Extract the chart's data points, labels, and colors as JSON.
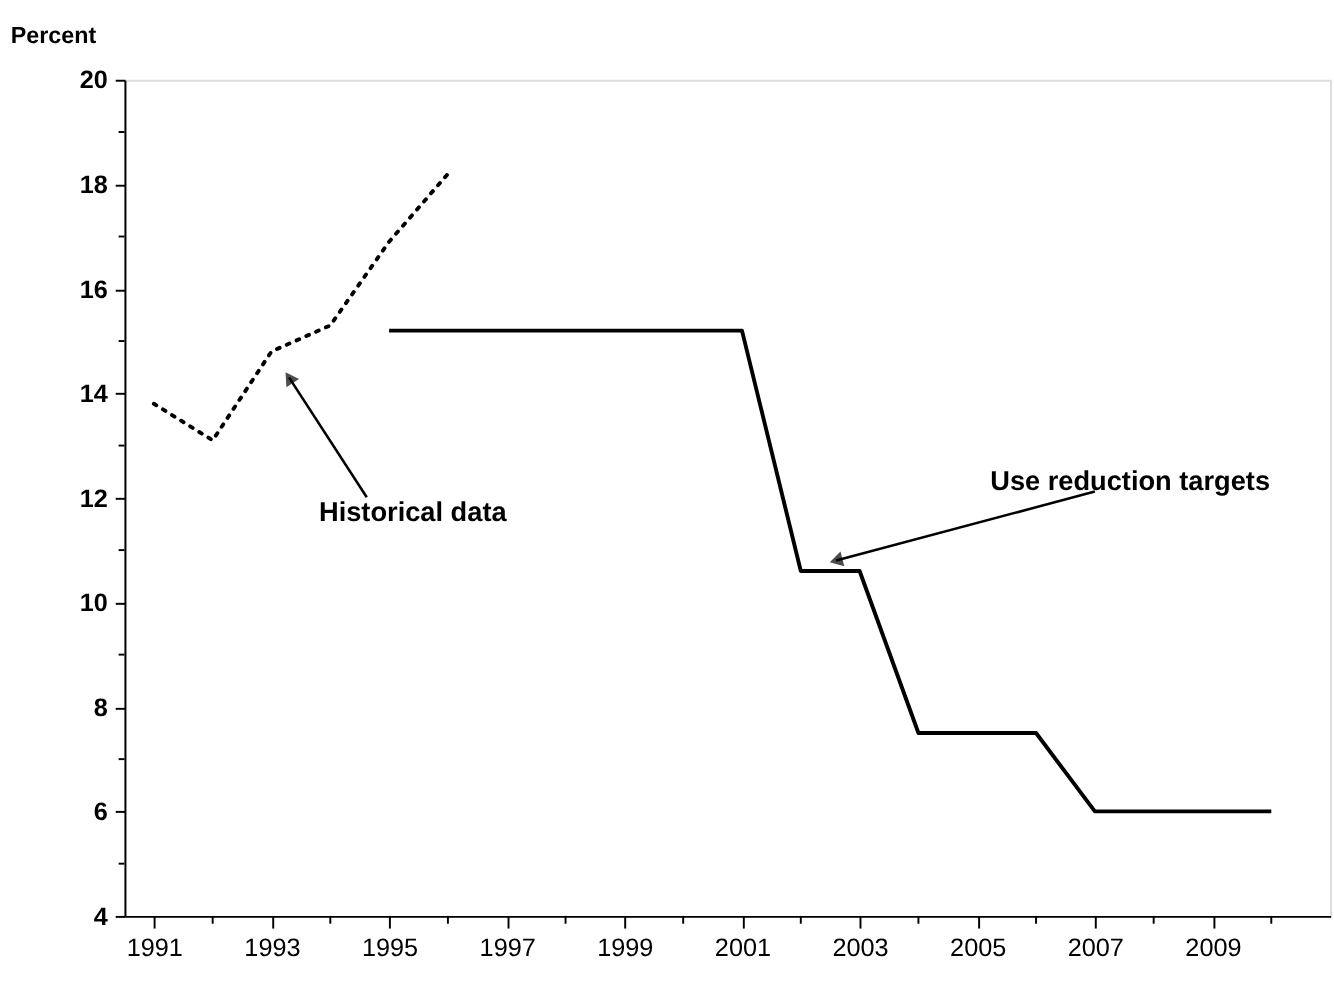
{
  "chart_data": {
    "type": "line",
    "ylabel": "Percent",
    "series": [
      {
        "x": [
          1991,
          1992,
          1993,
          1994,
          1995,
          1996
        ],
        "values": [
          13.8,
          13.1,
          14.8,
          15.3,
          16.9,
          18.2
        ],
        "color": "#000000",
        "line_style": "dotted"
      },
      {
        "x": [
          1995,
          1996,
          1997,
          1998,
          1999,
          2000,
          2001,
          2002,
          2003,
          2004,
          2005,
          2006,
          2007,
          2008,
          2009,
          2010
        ],
        "values": [
          15.2,
          15.2,
          15.2,
          15.2,
          15.2,
          15.2,
          15.2,
          10.6,
          10.6,
          7.5,
          7.5,
          7.5,
          6.0,
          6.0,
          6.0,
          6.0
        ],
        "color": "#000000",
        "line_style": "solid"
      }
    ],
    "xlim": [
      1990.5,
      2011
    ],
    "xticks": [
      1991,
      {
        "value": 1992,
        "label": null
      },
      1993,
      {
        "value": 1994,
        "label": null
      },
      1995,
      {
        "value": 1996,
        "label": null
      },
      1997,
      {
        "value": 1998,
        "label": null
      },
      1999,
      {
        "value": 2000,
        "label": null
      },
      2001,
      {
        "value": 2002,
        "label": null
      },
      2003,
      {
        "value": 2004,
        "label": null
      },
      2005,
      {
        "value": 2006,
        "label": null
      },
      2007,
      {
        "value": 2008,
        "label": null
      },
      2009,
      {
        "value": 2010,
        "label": null
      }
    ],
    "ylim": [
      4,
      20
    ],
    "yticks": [
      4,
      {
        "value": 5,
        "label": null
      },
      6,
      {
        "value": 7,
        "label": null
      },
      8,
      {
        "value": 9,
        "label": null
      },
      10,
      {
        "value": 11,
        "label": null
      },
      12,
      {
        "value": 13,
        "label": null
      },
      14,
      {
        "value": 15,
        "label": null
      },
      16,
      {
        "value": 17,
        "label": null
      },
      18,
      {
        "value": 19,
        "label": null
      },
      20
    ],
    "annotations": [
      {
        "text": "Historical data",
        "x": 1993.3,
        "y": 14.3
      },
      {
        "text": "Use reduction targets",
        "x": 2002.6,
        "y": 10.8
      }
    ],
    "grid": false,
    "marker": "none"
  }
}
